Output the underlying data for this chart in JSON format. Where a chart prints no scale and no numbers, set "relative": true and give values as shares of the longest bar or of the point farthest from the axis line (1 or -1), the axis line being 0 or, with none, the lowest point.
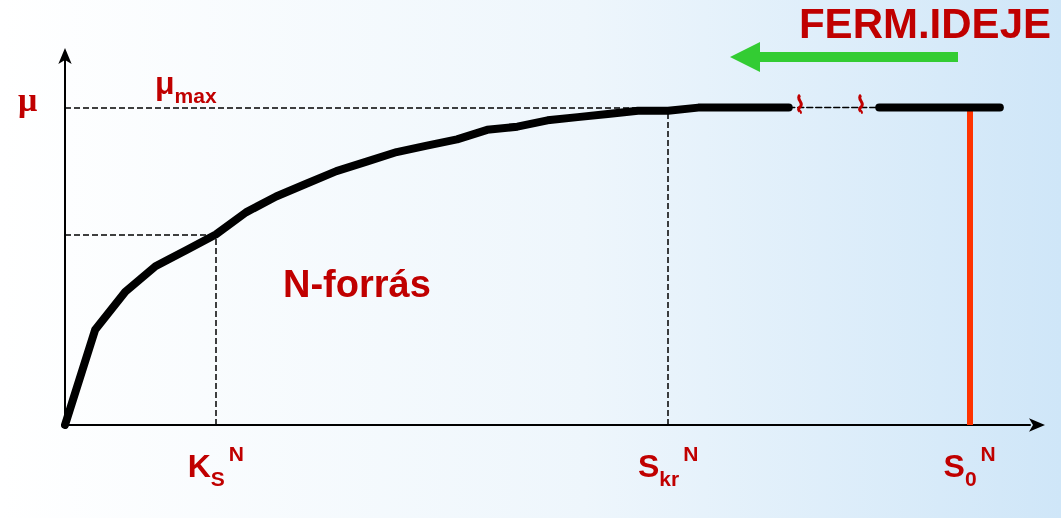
{
  "chart_data": {
    "type": "line",
    "relative": true,
    "ylabel": "μ",
    "categories": [
      null,
      null,
      null,
      null,
      null,
      "K$_{S}$$^{N}$",
      null,
      null,
      null,
      null,
      null,
      null,
      null,
      null,
      null,
      null,
      null,
      null,
      null,
      null,
      "S$_{kr}$$^{N}$",
      null,
      null,
      null,
      null,
      null,
      null,
      null,
      null,
      null,
      "S$_{0}$$^{N}$",
      null,
      null
    ],
    "series": [
      {
        "color": "#000000",
        "line_style": "solid",
        "values": [
          0,
          0.3,
          0.42,
          0.5,
          0.55,
          0.6,
          0.67,
          0.72,
          0.76,
          0.8,
          0.83,
          0.86,
          0.88,
          0.9,
          0.93,
          0.94,
          0.96,
          0.97,
          0.98,
          0.99,
          0.99,
          1,
          1,
          1,
          1,
          null,
          null,
          null,
          null,
          null,
          null,
          null,
          null
        ]
      },
      {
        "color": "#000000",
        "line_style": "dashed",
        "values": [
          null,
          null,
          null,
          null,
          null,
          null,
          null,
          null,
          null,
          null,
          null,
          null,
          null,
          null,
          null,
          null,
          null,
          null,
          null,
          null,
          null,
          null,
          null,
          null,
          1,
          1,
          1,
          1,
          null,
          null,
          null,
          null,
          null
        ]
      },
      {
        "color": "#000000",
        "line_style": "solid",
        "values": [
          null,
          null,
          null,
          null,
          null,
          null,
          null,
          null,
          null,
          null,
          null,
          null,
          null,
          null,
          null,
          null,
          null,
          null,
          null,
          null,
          null,
          null,
          null,
          null,
          null,
          null,
          null,
          1,
          1,
          1,
          1,
          1,
          null
        ]
      }
    ],
    "ref_lines": [
      {
        "axis": "y",
        "value": 1,
        "label": "μ$_{max}$",
        "color": "#000000",
        "line_style": "dashed"
      },
      {
        "axis": "y",
        "value": 0.6,
        "color": "#000000",
        "line_style": "dashed"
      },
      {
        "axis": "x",
        "value": "K$_{S}$$^{N}$",
        "color": "#000000",
        "line_style": "dashed"
      },
      {
        "axis": "x",
        "value": "S$_{kr}$$^{N}$",
        "color": "#000000",
        "line_style": "dashed"
      },
      {
        "axis": "x",
        "value": "S$_{0}$$^{N}$",
        "color": "#ff3300",
        "line_style": "solid"
      }
    ],
    "annotations": [
      "N-forrás",
      "FERM.IDEJE"
    ],
    "marker": "none",
    "grid": false
  }
}
